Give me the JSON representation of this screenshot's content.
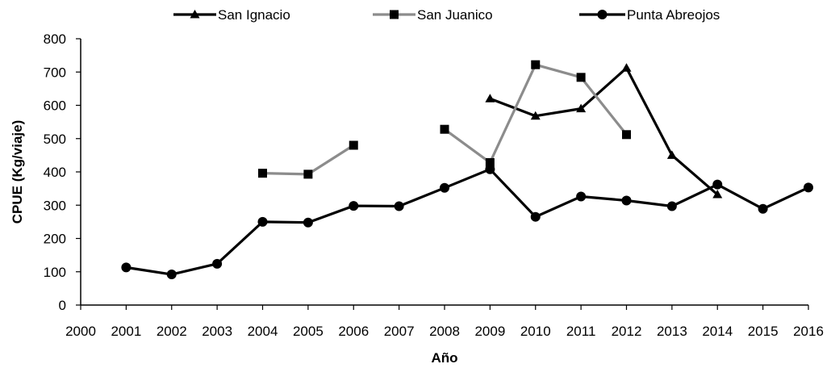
{
  "chart_data": {
    "type": "line",
    "xlabel": "Año",
    "ylabel": "CPUE  (Kg/viaje)",
    "xlim": [
      2000,
      2016
    ],
    "ylim": [
      0,
      800
    ],
    "xticks": [
      "2000",
      "2001",
      "2002",
      "2003",
      "2004",
      "2005",
      "2006",
      "2007",
      "2008",
      "2009",
      "2010",
      "2011",
      "2012",
      "2013",
      "2014",
      "2015",
      "2016"
    ],
    "yticks": [
      "0",
      "100",
      "200",
      "300",
      "400",
      "500",
      "600",
      "700",
      "800"
    ],
    "grid": false,
    "legend_position": "top",
    "series": [
      {
        "name": "San Ignacio",
        "marker": "triangle",
        "color": "#000000",
        "points": [
          [
            2009,
            620
          ],
          [
            2010,
            568
          ],
          [
            2011,
            590
          ],
          [
            2012,
            712
          ],
          [
            2013,
            450
          ],
          [
            2014,
            332
          ]
        ]
      },
      {
        "name": "San Juanico",
        "marker": "square",
        "color": "#8c8c8c",
        "marker_color": "#000000",
        "segments": [
          [
            [
              2004,
              396
            ],
            [
              2005,
              393
            ],
            [
              2006,
              480
            ]
          ],
          [
            [
              2008,
              528
            ],
            [
              2009,
              428
            ],
            [
              2010,
              722
            ],
            [
              2011,
              684
            ],
            [
              2012,
              512
            ]
          ]
        ]
      },
      {
        "name": "Punta Abreojos",
        "marker": "circle",
        "color": "#000000",
        "points": [
          [
            2001,
            113
          ],
          [
            2002,
            92
          ],
          [
            2003,
            124
          ],
          [
            2004,
            250
          ],
          [
            2005,
            248
          ],
          [
            2006,
            298
          ],
          [
            2007,
            297
          ],
          [
            2008,
            352
          ],
          [
            2009,
            408
          ],
          [
            2010,
            265
          ],
          [
            2011,
            326
          ],
          [
            2012,
            314
          ],
          [
            2013,
            297
          ],
          [
            2014,
            362
          ],
          [
            2015,
            289
          ],
          [
            2016,
            353
          ]
        ]
      }
    ]
  }
}
